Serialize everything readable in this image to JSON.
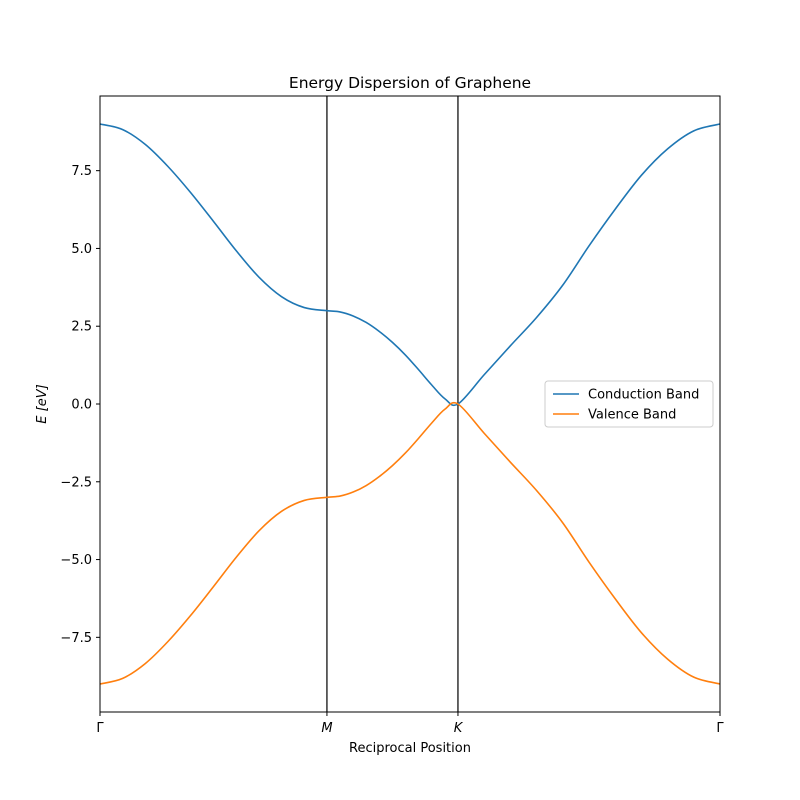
{
  "chart_data": {
    "type": "line",
    "title": "Energy Dispersion of Graphene",
    "xlabel": "Reciprocal Position",
    "ylabel": "E [eV]",
    "ylim": [
      -9.9,
      9.9
    ],
    "xlim": [
      0,
      2.3660254
    ],
    "x_ticks": [
      {
        "x": 0,
        "label": "Γ",
        "italic": false
      },
      {
        "x": 0.8660254,
        "label": "M",
        "italic": true
      },
      {
        "x": 1.3660254,
        "label": "K",
        "italic": true
      },
      {
        "x": 2.3660254,
        "label": "Γ",
        "italic": false
      }
    ],
    "y_ticks": [
      {
        "y": 7.5,
        "label": "7.5"
      },
      {
        "y": 5.0,
        "label": "5.0"
      },
      {
        "y": 2.5,
        "label": "2.5"
      },
      {
        "y": 0.0,
        "label": "0.0"
      },
      {
        "y": -2.5,
        "label": "−2.5"
      },
      {
        "y": -5.0,
        "label": "−5.0"
      },
      {
        "y": -7.5,
        "label": "−7.5"
      }
    ],
    "vertical_lines": [
      0.8660254,
      1.3660254
    ],
    "grid": false,
    "legend_position": "center-right",
    "series": [
      {
        "name": "Conduction Band",
        "color": "#1f77b4",
        "x": [
          0,
          0.0866,
          0.1732,
          0.2598,
          0.3464,
          0.433,
          0.5196,
          0.6062,
          0.6928,
          0.7794,
          0.866,
          0.916,
          0.966,
          1.016,
          1.066,
          1.116,
          1.166,
          1.216,
          1.266,
          1.316,
          1.366,
          1.466,
          1.566,
          1.666,
          1.766,
          1.866,
          1.966,
          2.066,
          2.166,
          2.266,
          2.366
        ],
        "y": [
          9.0,
          8.82,
          8.34,
          7.63,
          6.79,
          5.87,
          4.93,
          4.08,
          3.45,
          3.1,
          3.0,
          2.96,
          2.83,
          2.62,
          2.33,
          1.98,
          1.57,
          1.1,
          0.61,
          0.17,
          0.0,
          0.94,
          1.87,
          2.78,
          3.82,
          5.08,
          6.26,
          7.35,
          8.2,
          8.78,
          9.0
        ]
      },
      {
        "name": "Valence Band",
        "color": "#ff7f0e",
        "x": [
          0,
          0.0866,
          0.1732,
          0.2598,
          0.3464,
          0.433,
          0.5196,
          0.6062,
          0.6928,
          0.7794,
          0.866,
          0.916,
          0.966,
          1.016,
          1.066,
          1.116,
          1.166,
          1.216,
          1.266,
          1.316,
          1.366,
          1.466,
          1.566,
          1.666,
          1.766,
          1.866,
          1.966,
          2.066,
          2.166,
          2.266,
          2.366
        ],
        "y": [
          -9.0,
          -8.82,
          -8.34,
          -7.63,
          -6.79,
          -5.87,
          -4.93,
          -4.08,
          -3.45,
          -3.1,
          -3.0,
          -2.96,
          -2.83,
          -2.62,
          -2.33,
          -1.98,
          -1.57,
          -1.1,
          -0.61,
          -0.17,
          0.0,
          -0.94,
          -1.87,
          -2.78,
          -3.82,
          -5.08,
          -6.26,
          -7.35,
          -8.2,
          -8.78,
          -9.0
        ]
      }
    ]
  }
}
